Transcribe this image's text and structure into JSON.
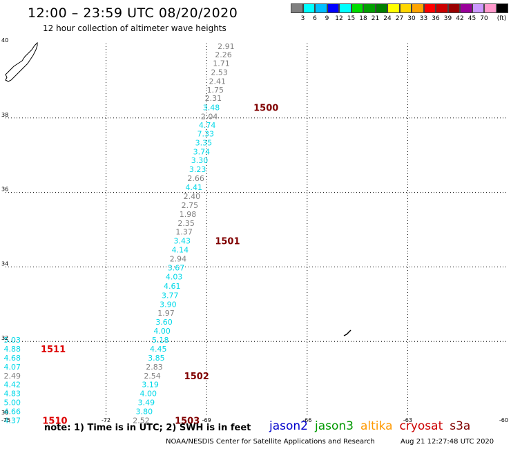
{
  "header": {
    "title": "12:00 – 23:59 UTC 08/20/2020",
    "subtitle": "12 hour collection of altimeter wave heights"
  },
  "legend": {
    "colors": [
      "#808080",
      "#00ffff",
      "#00bfff",
      "#0000ff",
      "#00ffff",
      "#00dd00",
      "#00a000",
      "#008000",
      "#ffff00",
      "#ffd700",
      "#ffa500",
      "#ff0000",
      "#cc0000",
      "#990000",
      "#990099",
      "#cc99ff",
      "#ff99cc",
      "#000000"
    ],
    "labels": [
      "3",
      "6",
      "9",
      "12",
      "15",
      "18",
      "21",
      "24",
      "27",
      "30",
      "33",
      "36",
      "39",
      "42",
      "45",
      "70",
      "(ft)"
    ]
  },
  "footer": {
    "note": "note:  1) Time is in UTC; 2) SWH is in feet",
    "credit": "NOAA/NESDIS Center for Satellite Applications and Research",
    "timestamp": "Aug 21 12:27:48 UTC 2020",
    "satellites": [
      {
        "name": "jason2",
        "color": "#0000cc"
      },
      {
        "name": "jason3",
        "color": "#009900"
      },
      {
        "name": "altika",
        "color": "#ff9900"
      },
      {
        "name": "cryosat",
        "color": "#cc0000"
      },
      {
        "name": "s3a",
        "color": "#800000"
      }
    ]
  },
  "chart_data": {
    "type": "scatter",
    "x_axis": {
      "range": [
        -75,
        -60
      ],
      "ticks": [
        -75,
        -72,
        -69,
        -66,
        -63,
        -60
      ]
    },
    "y_axis": {
      "range": [
        30,
        40
      ],
      "ticks": [
        30,
        32,
        34,
        36,
        38,
        40
      ]
    },
    "grid": true,
    "colors": {
      "gray": "#808080",
      "cyan": "#00d8e8"
    },
    "points": [
      {
        "x": -68.42,
        "y": 39.93,
        "v": "2.91",
        "c": "gray"
      },
      {
        "x": -68.5,
        "y": 39.7,
        "v": "2.26",
        "c": "gray"
      },
      {
        "x": -68.56,
        "y": 39.47,
        "v": "1.71",
        "c": "gray"
      },
      {
        "x": -68.62,
        "y": 39.23,
        "v": "2.53",
        "c": "gray"
      },
      {
        "x": -68.68,
        "y": 38.99,
        "v": "2.41",
        "c": "gray"
      },
      {
        "x": -68.74,
        "y": 38.76,
        "v": "1.75",
        "c": "gray"
      },
      {
        "x": -68.8,
        "y": 38.53,
        "v": "2.31",
        "c": "gray"
      },
      {
        "x": -68.86,
        "y": 38.28,
        "v": "3.48",
        "c": "cyan"
      },
      {
        "x": -68.92,
        "y": 38.04,
        "v": "2.04",
        "c": "gray"
      },
      {
        "x": -68.98,
        "y": 37.81,
        "v": "4.74",
        "c": "cyan"
      },
      {
        "x": -69.03,
        "y": 37.58,
        "v": "7.33",
        "c": "cyan"
      },
      {
        "x": -69.09,
        "y": 37.34,
        "v": "3.35",
        "c": "cyan"
      },
      {
        "x": -69.15,
        "y": 37.1,
        "v": "3.74",
        "c": "cyan"
      },
      {
        "x": -69.21,
        "y": 36.86,
        "v": "3.30",
        "c": "cyan"
      },
      {
        "x": -69.27,
        "y": 36.62,
        "v": "3.23",
        "c": "cyan"
      },
      {
        "x": -69.32,
        "y": 36.38,
        "v": "2.66",
        "c": "gray"
      },
      {
        "x": -69.38,
        "y": 36.14,
        "v": "4.41",
        "c": "cyan"
      },
      {
        "x": -69.44,
        "y": 35.9,
        "v": "2.40",
        "c": "gray"
      },
      {
        "x": -69.5,
        "y": 35.66,
        "v": "2.75",
        "c": "gray"
      },
      {
        "x": -69.56,
        "y": 35.42,
        "v": "1.98",
        "c": "gray"
      },
      {
        "x": -69.61,
        "y": 35.18,
        "v": "2.35",
        "c": "gray"
      },
      {
        "x": -69.67,
        "y": 34.94,
        "v": "1.37",
        "c": "gray"
      },
      {
        "x": -69.73,
        "y": 34.7,
        "v": "3.43",
        "c": "cyan"
      },
      {
        "x": -69.79,
        "y": 34.46,
        "v": "4.14",
        "c": "cyan"
      },
      {
        "x": -69.85,
        "y": 34.22,
        "v": "2.94",
        "c": "gray"
      },
      {
        "x": -69.91,
        "y": 33.98,
        "v": "3.67",
        "c": "cyan"
      },
      {
        "x": -69.97,
        "y": 33.74,
        "v": "4.03",
        "c": "cyan"
      },
      {
        "x": -70.03,
        "y": 33.49,
        "v": "4.61",
        "c": "cyan"
      },
      {
        "x": -70.09,
        "y": 33.24,
        "v": "3.77",
        "c": "cyan"
      },
      {
        "x": -70.15,
        "y": 33.0,
        "v": "3.90",
        "c": "cyan"
      },
      {
        "x": -70.21,
        "y": 32.76,
        "v": "1.97",
        "c": "gray"
      },
      {
        "x": -70.27,
        "y": 32.52,
        "v": "3.60",
        "c": "cyan"
      },
      {
        "x": -70.33,
        "y": 32.28,
        "v": "4.00",
        "c": "cyan"
      },
      {
        "x": -70.38,
        "y": 32.04,
        "v": "5.18",
        "c": "cyan"
      },
      {
        "x": -70.44,
        "y": 31.8,
        "v": "4.45",
        "c": "cyan"
      },
      {
        "x": -70.5,
        "y": 31.56,
        "v": "3.85",
        "c": "cyan"
      },
      {
        "x": -70.56,
        "y": 31.32,
        "v": "2.83",
        "c": "gray"
      },
      {
        "x": -70.62,
        "y": 31.08,
        "v": "2.54",
        "c": "gray"
      },
      {
        "x": -70.68,
        "y": 30.84,
        "v": "3.19",
        "c": "cyan"
      },
      {
        "x": -70.74,
        "y": 30.6,
        "v": "4.00",
        "c": "cyan"
      },
      {
        "x": -70.8,
        "y": 30.36,
        "v": "3.49",
        "c": "cyan"
      },
      {
        "x": -70.86,
        "y": 30.12,
        "v": "3.80",
        "c": "cyan"
      },
      {
        "x": -70.95,
        "y": 29.88,
        "v": "2.52",
        "c": "gray"
      },
      {
        "x": -74.8,
        "y": 32.04,
        "v": "5.03",
        "c": "cyan"
      },
      {
        "x": -74.8,
        "y": 31.8,
        "v": "4.88",
        "c": "cyan"
      },
      {
        "x": -74.8,
        "y": 31.56,
        "v": "4.68",
        "c": "cyan"
      },
      {
        "x": -74.8,
        "y": 31.32,
        "v": "4.07",
        "c": "cyan"
      },
      {
        "x": -74.8,
        "y": 31.08,
        "v": "2.49",
        "c": "gray"
      },
      {
        "x": -74.8,
        "y": 30.84,
        "v": "4.42",
        "c": "cyan"
      },
      {
        "x": -74.8,
        "y": 30.6,
        "v": "4.83",
        "c": "cyan"
      },
      {
        "x": -74.8,
        "y": 30.36,
        "v": "5.00",
        "c": "cyan"
      },
      {
        "x": -74.8,
        "y": 30.12,
        "v": "4.66",
        "c": "cyan"
      },
      {
        "x": -74.8,
        "y": 29.88,
        "v": "4.37",
        "c": "cyan"
      }
    ],
    "time_labels": [
      {
        "x": -67.6,
        "y": 38.28,
        "text": "1500",
        "color": "#800000"
      },
      {
        "x": -68.75,
        "y": 34.7,
        "text": "1501",
        "color": "#800000"
      },
      {
        "x": -69.67,
        "y": 31.08,
        "text": "1502",
        "color": "#800000"
      },
      {
        "x": -69.95,
        "y": 29.88,
        "text": "1503",
        "color": "#800000"
      },
      {
        "x": -73.95,
        "y": 31.8,
        "text": "1511",
        "color": "#dd0000"
      },
      {
        "x": -73.9,
        "y": 29.88,
        "text": "1510",
        "color": "#dd0000"
      }
    ]
  }
}
